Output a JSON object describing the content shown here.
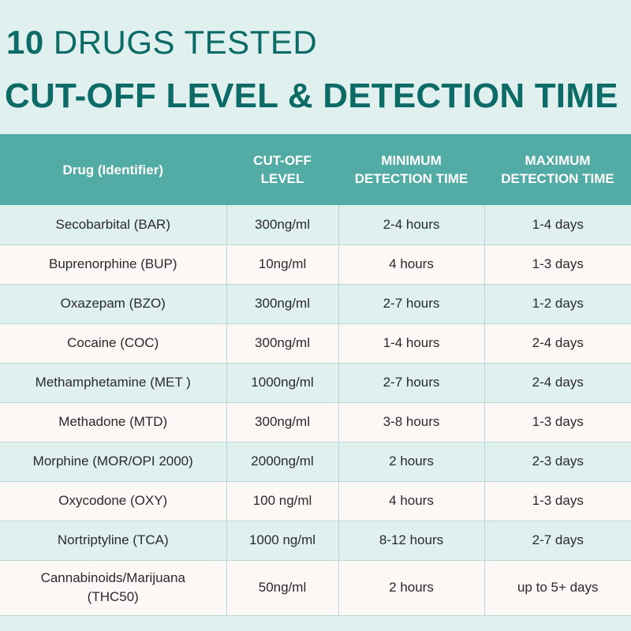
{
  "title": {
    "number": "10",
    "line1_rest": "DRUGS TESTED",
    "line2": "CUT-OFF LEVEL & DETECTION TIME"
  },
  "colors": {
    "accent": "#0c6b66",
    "header_bg": "#52aba5",
    "row_alt": "#dff0ef",
    "row_light": "#fbf8f5"
  },
  "table": {
    "headers": {
      "drug": "Drug (Identifier)",
      "cutoff_l1": "CUT-OFF",
      "cutoff_l2": "LEVEL",
      "min_l1": "MINIMUM",
      "min_l2": "DETECTION TIME",
      "max_l1": "MAXIMUM",
      "max_l2": "DETECTION TIME"
    },
    "rows": [
      {
        "drug": "Secobarbital (BAR)",
        "cutoff": "300ng/ml",
        "min": "2-4 hours",
        "max": "1-4 days"
      },
      {
        "drug": "Buprenorphine (BUP)",
        "cutoff": "10ng/ml",
        "min": "4 hours",
        "max": "1-3 days"
      },
      {
        "drug": "Oxazepam (BZO)",
        "cutoff": "300ng/ml",
        "min": "2-7 hours",
        "max": "1-2 days"
      },
      {
        "drug": "Cocaine (COC)",
        "cutoff": "300ng/ml",
        "min": "1-4 hours",
        "max": "2-4 days"
      },
      {
        "drug": "Methamphetamine (MET )",
        "cutoff": "1000ng/ml",
        "min": "2-7 hours",
        "max": "2-4 days"
      },
      {
        "drug": "Methadone (MTD)",
        "cutoff": "300ng/ml",
        "min": "3-8 hours",
        "max": "1-3 days"
      },
      {
        "drug": "Morphine (MOR/OPI 2000)",
        "cutoff": "2000ng/ml",
        "min": "2 hours",
        "max": "2-3 days"
      },
      {
        "drug": "Oxycodone (OXY)",
        "cutoff": "100 ng/ml",
        "min": "4 hours",
        "max": "1-3 days"
      },
      {
        "drug": "Nortriptyline (TCA)",
        "cutoff": "1000 ng/ml",
        "min": "8-12 hours",
        "max": "2-7 days"
      },
      {
        "drug_l1": "Cannabinoids/Marijuana",
        "drug_l2": "(THC50)",
        "cutoff": "50ng/ml",
        "min": "2 hours",
        "max": "up to 5+ days"
      }
    ]
  }
}
